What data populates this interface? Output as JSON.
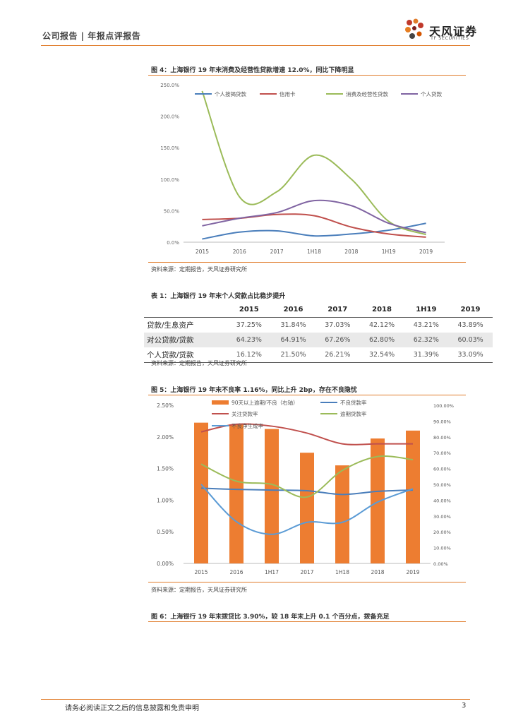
{
  "header": {
    "left": "公司报告 | 年报点评报告",
    "logo_cn": "天风证券",
    "logo_en": "TF SECURITIES"
  },
  "fig4": {
    "caption": "图 4：上海银行 19 年末消费及经营性贷款增速 12.0%，同比下降明显",
    "source": "资料来源：定期报告，天风证券研究所"
  },
  "table1": {
    "caption": "表 1：上海银行 19 年末个人贷款占比稳步提升",
    "headers": [
      "",
      "2015",
      "2016",
      "2017",
      "2018",
      "1H19",
      "2019"
    ],
    "rows": [
      [
        "贷款/生息资产",
        "37.25%",
        "31.84%",
        "37.03%",
        "42.12%",
        "43.21%",
        "43.89%"
      ],
      [
        "对公贷款/贷款",
        "64.23%",
        "64.91%",
        "67.26%",
        "62.80%",
        "62.32%",
        "60.03%"
      ],
      [
        "个人贷款/贷款",
        "16.12%",
        "21.50%",
        "26.21%",
        "32.54%",
        "31.39%",
        "33.09%"
      ]
    ],
    "source": "资料来源：定期报告，天风证券研究所"
  },
  "fig5": {
    "caption": "图 5：上海银行 19 年末不良率 1.16%，同比上升 2bp，存在不良隐忧",
    "source": "资料来源：定期报告，天风证券研究所"
  },
  "fig6": {
    "caption": "图 6：上海银行 19 年末拨贷比 3.90%，较 18 年末上升 0.1 个百分点，拨备充足"
  },
  "footer": {
    "text": "请务必阅读正文之后的信息披露和免责申明",
    "page": "3"
  },
  "chart_data": [
    {
      "type": "line",
      "x": [
        "2015",
        "2016",
        "2017",
        "1H18",
        "2018",
        "1H19",
        "2019"
      ],
      "ylim": [
        0,
        250
      ],
      "yticks": [
        "0.0%",
        "50.0%",
        "100.0%",
        "150.0%",
        "200.0%",
        "250.0%"
      ],
      "legend_position": "top",
      "series": [
        {
          "name": "个人按揭贷款",
          "color": "#4a7ebb",
          "values": [
            5,
            16,
            18,
            10,
            13,
            19,
            30
          ]
        },
        {
          "name": "信用卡",
          "color": "#c0504d",
          "values": [
            36,
            38,
            44,
            42,
            24,
            13,
            8
          ]
        },
        {
          "name": "消费及经营性贷款",
          "color": "#9bbb59",
          "values": [
            240,
            72,
            80,
            138,
            100,
            33,
            12
          ]
        },
        {
          "name": "个人贷款",
          "color": "#8064a2",
          "values": [
            26,
            38,
            47,
            66,
            58,
            30,
            15
          ]
        }
      ]
    },
    {
      "type": "bar+line",
      "x": [
        "2015",
        "2016",
        "1H17",
        "2017",
        "1H18",
        "2018",
        "2019"
      ],
      "ylim_left": [
        0,
        2.5
      ],
      "ylim_right": [
        0,
        100
      ],
      "yticks_left": [
        "0.00%",
        "0.50%",
        "1.00%",
        "1.50%",
        "2.00%",
        "2.50%"
      ],
      "yticks_right": [
        "0.00%",
        "10.00%",
        "20.00%",
        "30.00%",
        "40.00%",
        "50.00%",
        "60.00%",
        "70.00%",
        "80.00%",
        "90.00%",
        "100.00%"
      ],
      "bar_series": {
        "name": "90天以上逾期/不良（右轴）",
        "color": "#ed7d31",
        "axis": "right",
        "values": [
          89,
          88,
          85,
          70,
          62,
          79,
          84
        ]
      },
      "line_series": [
        {
          "name": "不良贷款率",
          "color": "#4a7ebb",
          "axis": "left",
          "values": [
            1.19,
            1.17,
            1.16,
            1.15,
            1.09,
            1.14,
            1.16
          ]
        },
        {
          "name": "关注贷款率",
          "color": "#c0504d",
          "axis": "left",
          "values": [
            2.08,
            2.2,
            2.17,
            2.06,
            1.89,
            1.89,
            1.89
          ]
        },
        {
          "name": "逾期贷款率",
          "color": "#9bbb59",
          "axis": "left",
          "values": [
            1.57,
            1.3,
            1.25,
            1.05,
            1.47,
            1.69,
            1.64
          ]
        },
        {
          "name": "不良净生成率",
          "color": "#5b9bd5",
          "axis": "left",
          "values": [
            1.25,
            0.66,
            0.46,
            0.65,
            0.65,
            0.97,
            1.18
          ]
        }
      ]
    }
  ]
}
